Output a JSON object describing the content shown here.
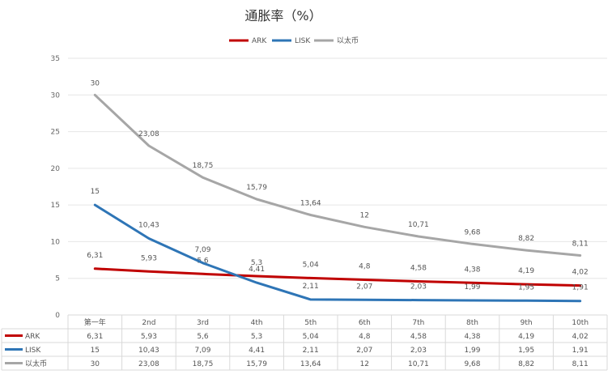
{
  "chart_data": {
    "type": "line",
    "title": "通胀率（%）",
    "categories": [
      "第一年",
      "2nd",
      "3rd",
      "4th",
      "5th",
      "6th",
      "7th",
      "8th",
      "9th",
      "10th"
    ],
    "series": [
      {
        "name": "ARK",
        "values": [
          6.31,
          5.93,
          5.6,
          5.3,
          5.04,
          4.8,
          4.58,
          4.38,
          4.19,
          4.02
        ],
        "labels": [
          "6,31",
          "5,93",
          "5,6",
          "5,3",
          "5,04",
          "4,8",
          "4,58",
          "4,38",
          "4,19",
          "4,02"
        ],
        "color": "#c00000"
      },
      {
        "name": "LISK",
        "values": [
          15,
          10.43,
          7.09,
          4.41,
          2.11,
          2.07,
          2.03,
          1.99,
          1.95,
          1.91
        ],
        "labels": [
          "15",
          "10,43",
          "7,09",
          "4,41",
          "2,11",
          "2,07",
          "2,03",
          "1,99",
          "1,95",
          "1,91"
        ],
        "color": "#2e75b6"
      },
      {
        "name": "以太币",
        "values": [
          30,
          23.08,
          18.75,
          15.79,
          13.64,
          12,
          10.71,
          9.68,
          8.82,
          8.11
        ],
        "labels": [
          "30",
          "23,08",
          "18,75",
          "15,79",
          "13,64",
          "12",
          "10,71",
          "9,68",
          "8,82",
          "8,11"
        ],
        "color": "#a6a6a6"
      }
    ],
    "ylim": [
      0,
      35
    ],
    "yticks": [
      0,
      5,
      10,
      15,
      20,
      25,
      30,
      35
    ],
    "legend": "top-center",
    "grid": true,
    "data_table": true
  }
}
